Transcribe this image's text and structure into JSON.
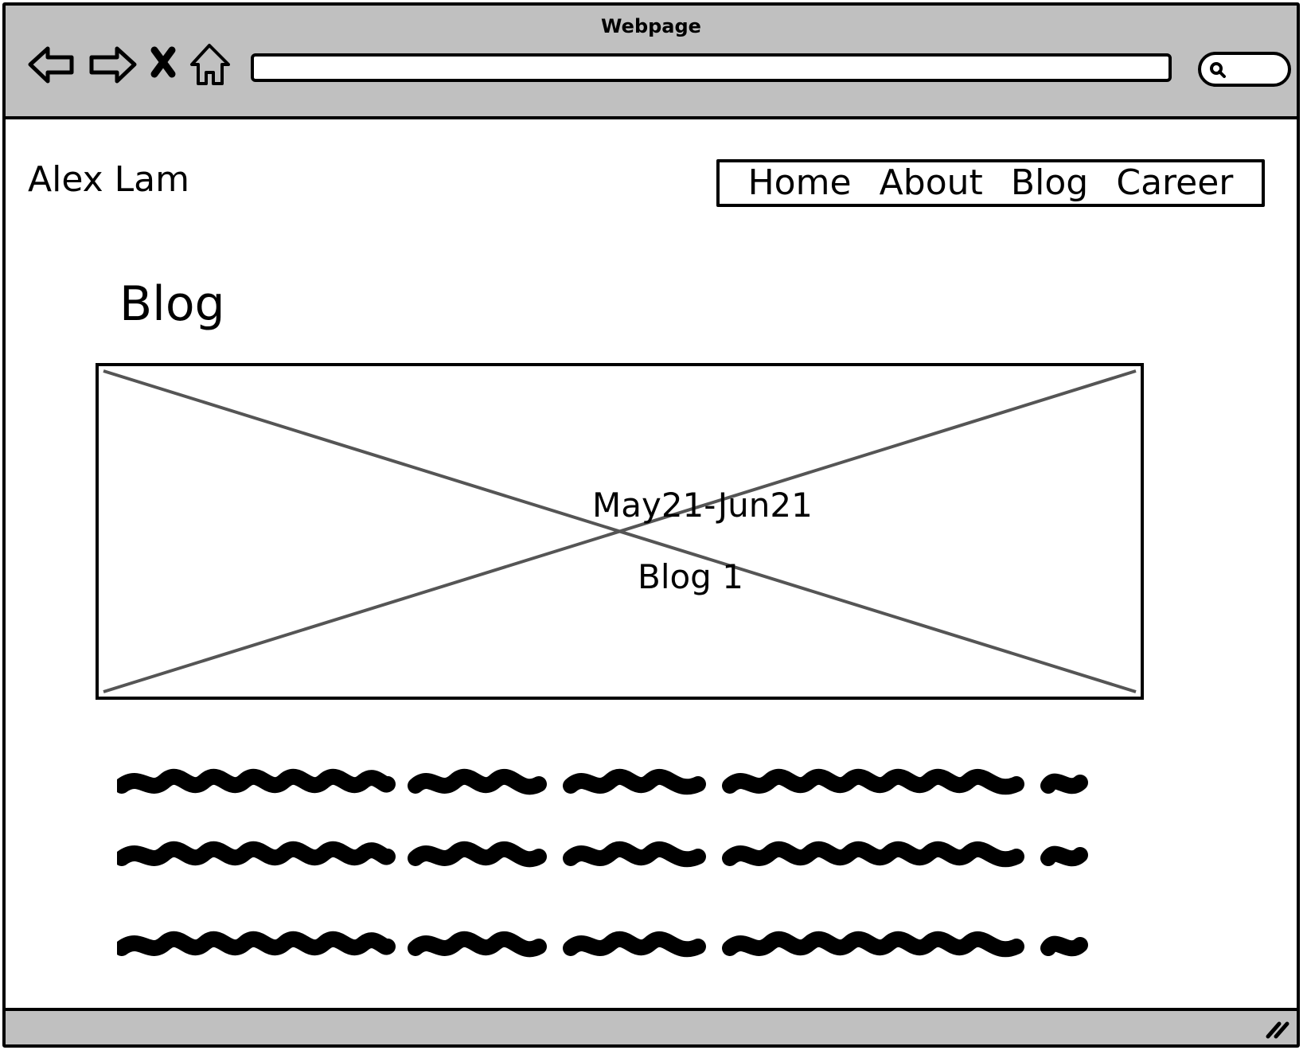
{
  "window": {
    "title": "Webpage",
    "address": ""
  },
  "toolbar": {
    "icons": [
      "back-arrow-icon",
      "forward-arrow-icon",
      "stop-icon",
      "home-icon",
      "search-icon",
      "resize-grip-icon"
    ]
  },
  "site": {
    "brand": "Alex Lam",
    "menu": [
      {
        "label": "Home"
      },
      {
        "label": "About"
      },
      {
        "label": "Blog"
      },
      {
        "label": "Career"
      }
    ]
  },
  "main": {
    "heading": "Blog",
    "hero": {
      "date": "May21-Jun21",
      "title": "Blog 1"
    },
    "text_lines": 3
  },
  "colors": {
    "chrome": "#c0c0c0",
    "border": "#000000",
    "cross": "#555555"
  }
}
